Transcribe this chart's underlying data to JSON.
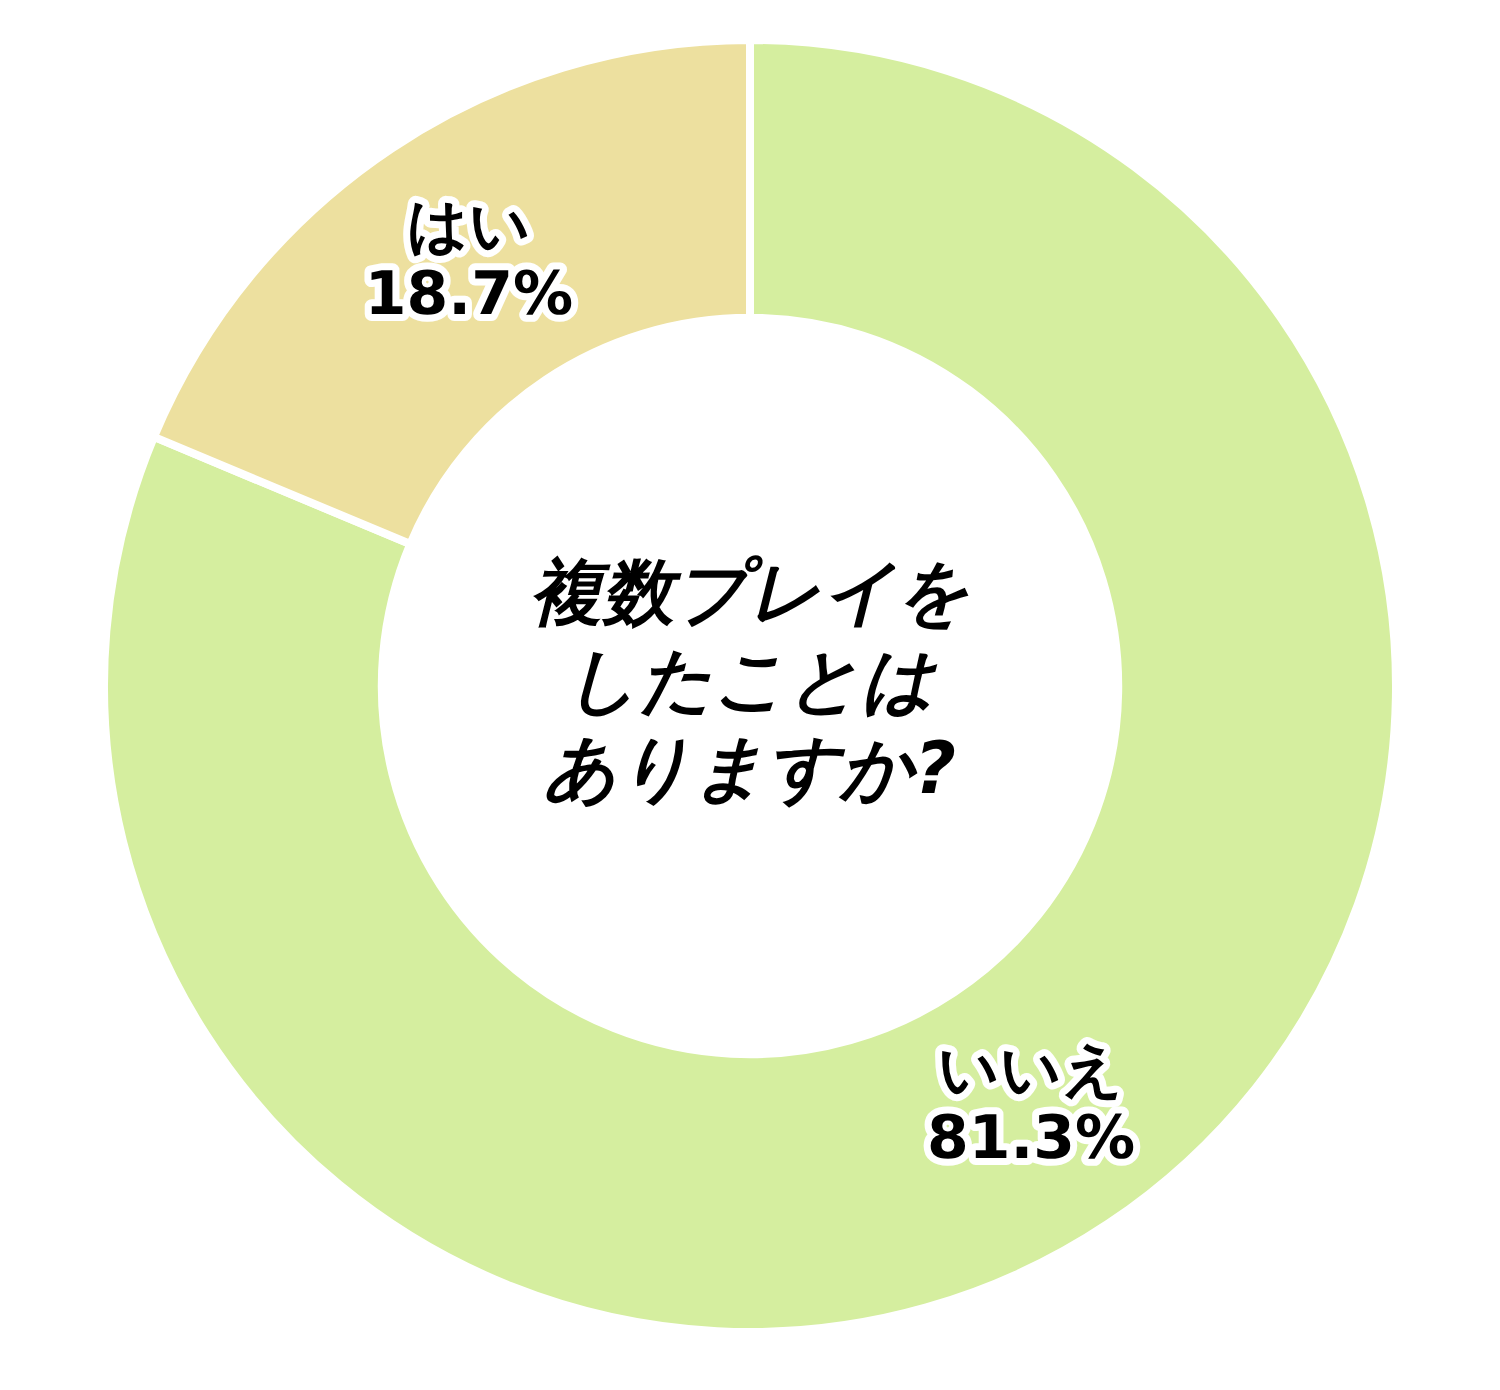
{
  "chart_data": {
    "type": "donut",
    "title": "複数プレイをしたことはありますか?",
    "categories": [
      "いいえ",
      "はい"
    ],
    "values": [
      81.3,
      18.7
    ],
    "colors": [
      "#d5ee9f",
      "#ede09f"
    ],
    "value_labels": [
      "81.3%",
      "18.7%"
    ]
  }
}
